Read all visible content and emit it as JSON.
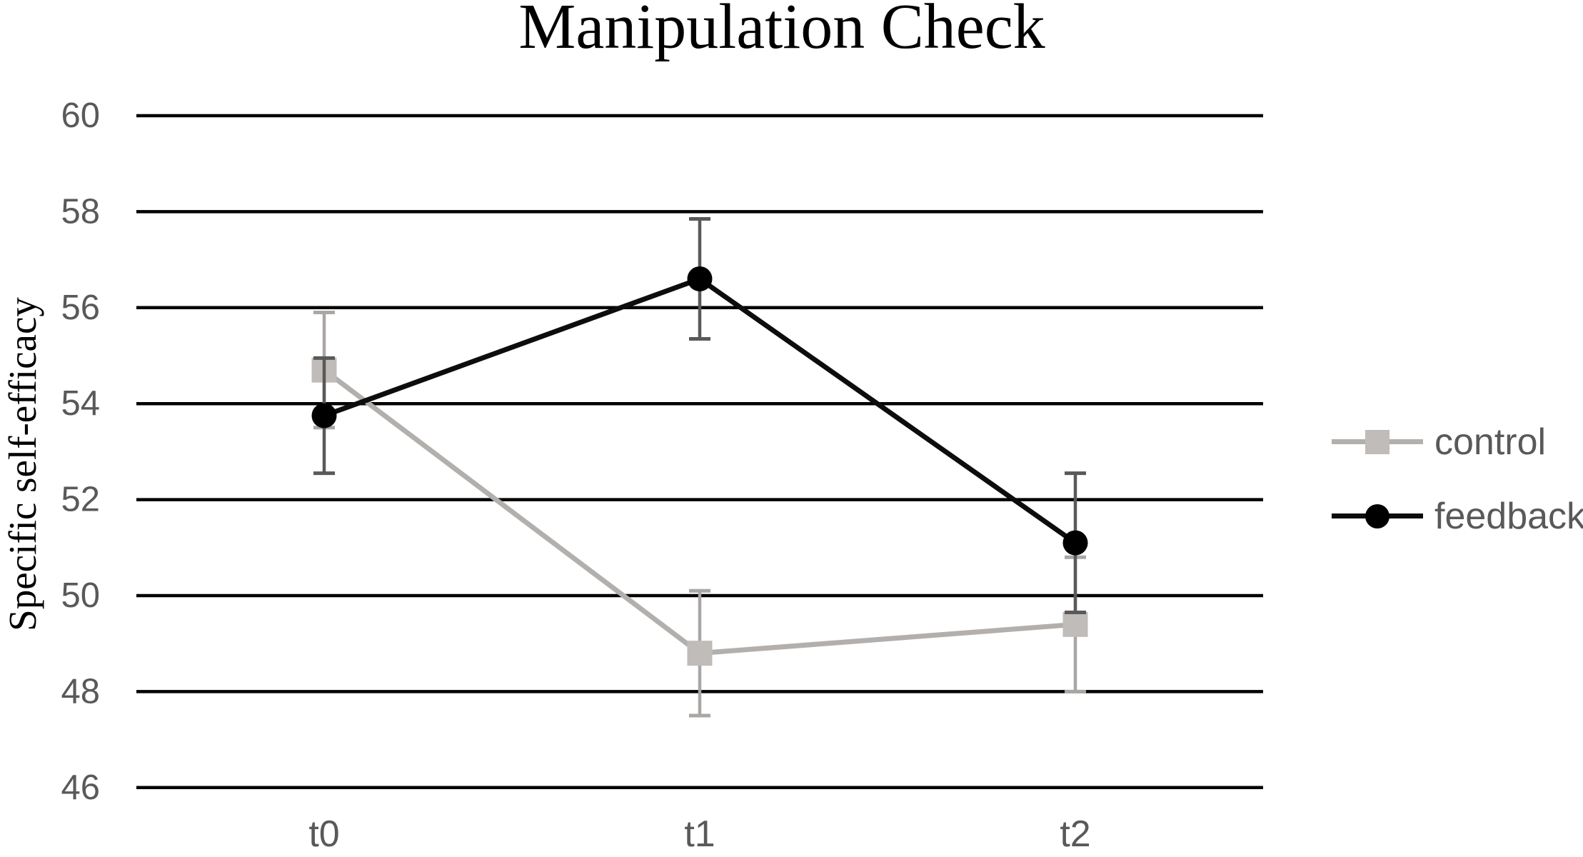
{
  "title": "Manipulation Check",
  "colors": {
    "gridline": "#000000",
    "tick_label": "#595959",
    "legend_text": "#595959",
    "title_text": "#000000"
  },
  "legend": {
    "position": "right",
    "items": [
      "control",
      "feedback"
    ]
  },
  "chart_data": {
    "type": "line",
    "title": "Manipulation Check",
    "xlabel": "",
    "ylabel": "Specific self-efficacy",
    "categories": [
      "t0",
      "t1",
      "t2"
    ],
    "yticks": [
      60,
      58,
      56,
      54,
      52,
      50,
      48,
      46
    ],
    "ylim": [
      46,
      60
    ],
    "ytick_step": 2,
    "grid": "horizontal-only",
    "legend_position": "right",
    "error_bars": true,
    "series": [
      {
        "name": "control",
        "marker": "square",
        "color": "#b2afac",
        "marker_color": "#bfbcb9",
        "error_color": "#a9a6a3",
        "values": [
          54.7,
          48.8,
          49.4
        ],
        "errors": [
          1.2,
          1.3,
          1.4
        ]
      },
      {
        "name": "feedback",
        "marker": "circle",
        "color": "#0d0d0d",
        "marker_color": "#000000",
        "error_color": "#595959",
        "values": [
          53.75,
          56.6,
          51.1
        ],
        "errors": [
          1.2,
          1.25,
          1.45
        ]
      }
    ]
  }
}
